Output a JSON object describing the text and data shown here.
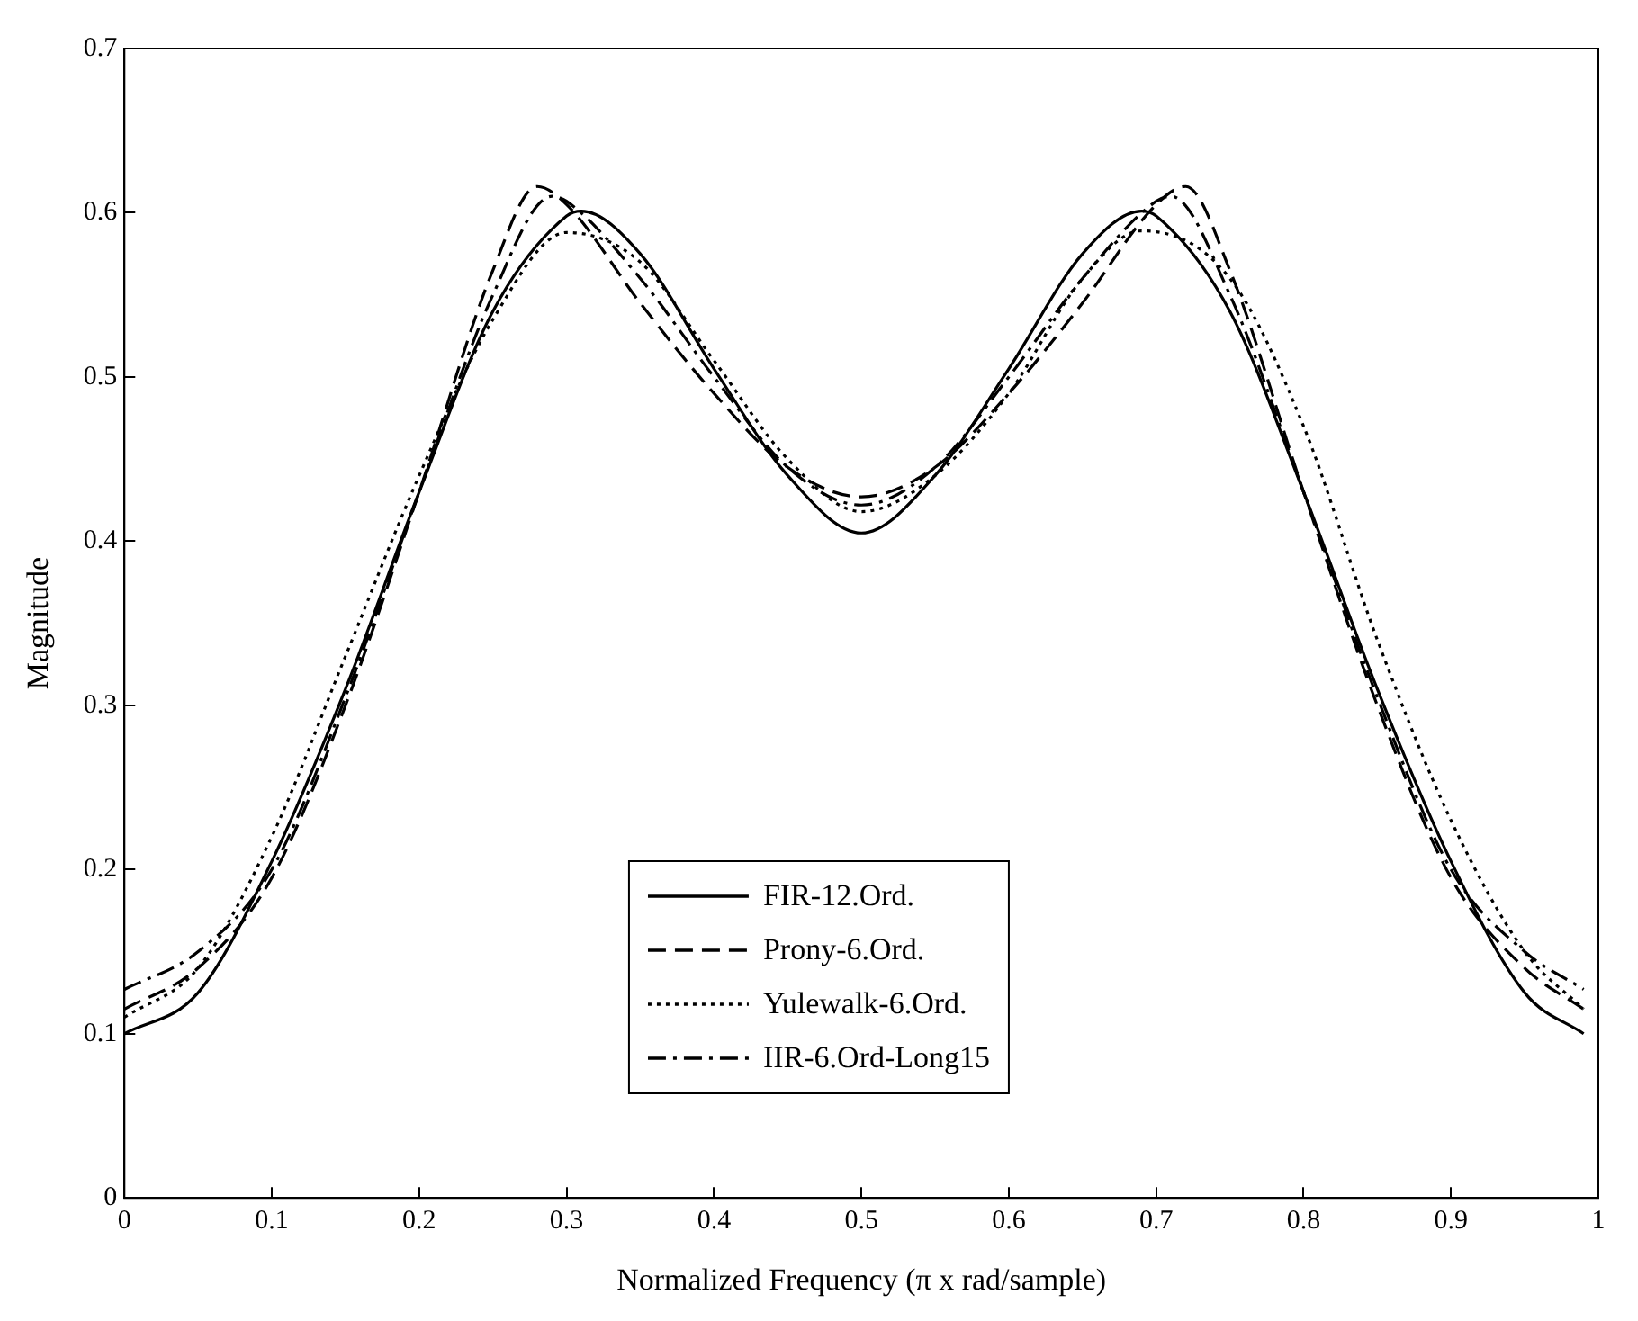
{
  "chart_data": {
    "type": "line",
    "xlabel": "Normalized Frequency (π x rad/sample)",
    "ylabel": "Magnitude",
    "xlim": [
      0,
      1
    ],
    "ylim": [
      0,
      0.7
    ],
    "xticks": [
      0,
      0.1,
      0.2,
      0.3,
      0.4,
      0.5,
      0.6,
      0.7,
      0.8,
      0.9,
      1
    ],
    "yticks": [
      0,
      0.1,
      0.2,
      0.3,
      0.4,
      0.5,
      0.6,
      0.7
    ],
    "grid": false,
    "legend": "bottom",
    "marker": "none",
    "series": [
      {
        "name": "FIR-12.Ord.",
        "color": "#000000",
        "line_style": "solid",
        "x": [
          0,
          0.05,
          0.1,
          0.15,
          0.2,
          0.25,
          0.3,
          0.31,
          0.35,
          0.4,
          0.45,
          0.5,
          0.55,
          0.6,
          0.65,
          0.69,
          0.7,
          0.75,
          0.8,
          0.85,
          0.9,
          0.95,
          0.99
        ],
        "values": [
          0.1,
          0.125,
          0.205,
          0.31,
          0.43,
          0.54,
          0.598,
          0.601,
          0.575,
          0.505,
          0.44,
          0.405,
          0.44,
          0.505,
          0.575,
          0.601,
          0.598,
          0.54,
          0.43,
          0.31,
          0.205,
          0.125,
          0.1
        ]
      },
      {
        "name": "Prony-6.Ord.",
        "color": "#000000",
        "line_style": "dashed",
        "x": [
          0,
          0.05,
          0.1,
          0.15,
          0.2,
          0.25,
          0.28,
          0.3,
          0.35,
          0.4,
          0.45,
          0.5,
          0.55,
          0.6,
          0.65,
          0.7,
          0.72,
          0.75,
          0.8,
          0.85,
          0.9,
          0.95,
          0.99
        ],
        "values": [
          0.115,
          0.14,
          0.195,
          0.3,
          0.43,
          0.565,
          0.616,
          0.605,
          0.545,
          0.49,
          0.445,
          0.427,
          0.445,
          0.49,
          0.545,
          0.605,
          0.616,
          0.565,
          0.43,
          0.3,
          0.195,
          0.14,
          0.115
        ]
      },
      {
        "name": "Yulewalk-6.Ord.",
        "color": "#000000",
        "line_style": "dotted",
        "x": [
          0,
          0.05,
          0.1,
          0.15,
          0.2,
          0.25,
          0.3,
          0.35,
          0.4,
          0.45,
          0.5,
          0.55,
          0.6,
          0.65,
          0.69,
          0.75,
          0.8,
          0.85,
          0.9,
          0.95,
          0.99
        ],
        "values": [
          0.11,
          0.14,
          0.22,
          0.33,
          0.44,
          0.535,
          0.588,
          0.57,
          0.51,
          0.45,
          0.418,
          0.44,
          0.49,
          0.56,
          0.589,
          0.56,
          0.47,
          0.34,
          0.23,
          0.15,
          0.115
        ]
      },
      {
        "name": "IIR-6.Ord-Long15",
        "color": "#000000",
        "line_style": "dashdot",
        "x": [
          0,
          0.05,
          0.1,
          0.15,
          0.2,
          0.25,
          0.29,
          0.3,
          0.35,
          0.4,
          0.45,
          0.5,
          0.55,
          0.6,
          0.65,
          0.7,
          0.71,
          0.75,
          0.8,
          0.85,
          0.9,
          0.95,
          0.99
        ],
        "values": [
          0.127,
          0.15,
          0.2,
          0.305,
          0.43,
          0.55,
          0.61,
          0.607,
          0.56,
          0.5,
          0.445,
          0.422,
          0.445,
          0.5,
          0.56,
          0.607,
          0.61,
          0.55,
          0.43,
          0.305,
          0.2,
          0.15,
          0.127
        ]
      }
    ]
  }
}
